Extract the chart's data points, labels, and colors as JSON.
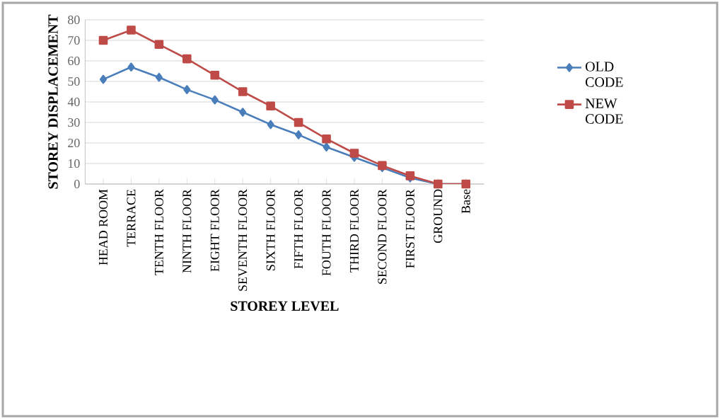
{
  "chart_data": {
    "type": "line",
    "xlabel": "STOREY LEVEL",
    "ylabel": "STOREY DISPLACEMENT",
    "categories": [
      "HEAD ROOM",
      "TERRACE",
      "TENTH FLOOR",
      "NINTH FLOOR",
      "EIGHT FLOOR",
      "SEVENTH FLOOR",
      "SIXTH FLOOR",
      "FIFTH FLOOR",
      "FOUTH FLOOR",
      "THIRD FLOOR",
      "SECOND FLOOR",
      "FIRST FLOOR",
      "GROUND",
      "Base"
    ],
    "series": [
      {
        "name": "OLD CODE",
        "color": "#4a7ebb",
        "marker": "diamond",
        "values": [
          51,
          57,
          52,
          46,
          41,
          35,
          29,
          24,
          18,
          13,
          8,
          3,
          0,
          0
        ]
      },
      {
        "name": "NEW CODE",
        "color": "#be4b48",
        "marker": "square",
        "values": [
          70,
          75,
          68,
          61,
          53,
          45,
          38,
          30,
          22,
          15,
          9,
          4,
          0,
          0
        ]
      }
    ],
    "ylim": [
      0,
      80
    ],
    "yticks": [
      0,
      10,
      20,
      30,
      40,
      50,
      60,
      70,
      80
    ],
    "grid": "y",
    "legend": "right",
    "line_style": "solid"
  }
}
